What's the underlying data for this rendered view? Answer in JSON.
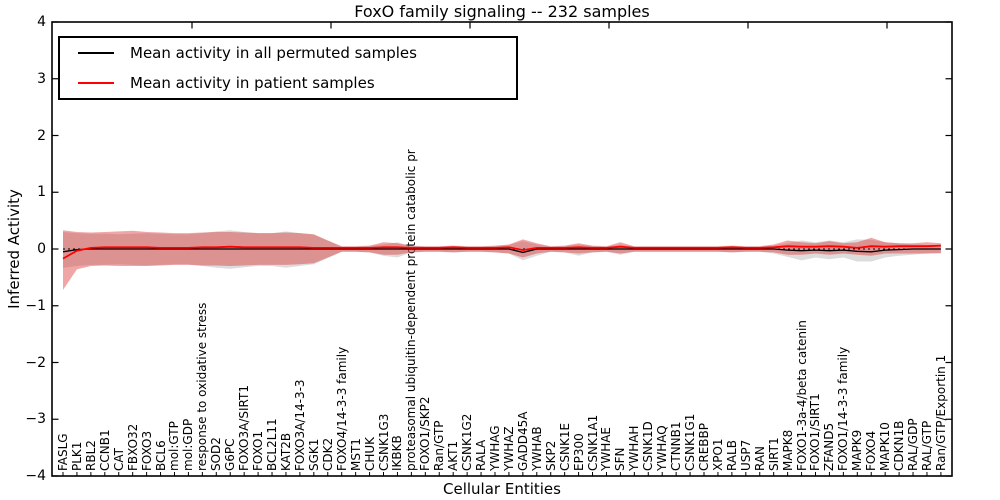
{
  "title": "FoxO family signaling -- 232 samples",
  "axes": {
    "ylabel": "Inferred Activity",
    "xlabel": "Cellular Entities",
    "yticks": [
      4,
      3,
      2,
      1,
      0,
      -1,
      -2,
      -3,
      -4
    ],
    "ylim": [
      -4,
      4
    ]
  },
  "legend": {
    "items": [
      {
        "label": "Mean activity in all permuted samples",
        "color": "#000000"
      },
      {
        "label": "Mean activity in patient samples",
        "color": "#ff0000"
      }
    ]
  },
  "colors": {
    "permuted_line": "#000000",
    "patient_line": "#ff0000",
    "permuted_band": "#9a9a9a",
    "patient_band": "#dd2a2a",
    "zero_line": "#000000",
    "axis": "#000000"
  },
  "chart_data": {
    "type": "line",
    "title": "FoxO family signaling -- 232 samples",
    "xlabel": "Cellular Entities",
    "ylabel": "Inferred Activity",
    "ylim": [
      -4,
      4
    ],
    "grid": false,
    "legend_position": "upper left",
    "zero_line": true,
    "categories": [
      "FASLG",
      "PLK1",
      "RBL2",
      "CCNB1",
      "CAT",
      "FBXO32",
      "FOXO3",
      "BCL6",
      "mol:GTP",
      "mol:GDP",
      "response to oxidative stress",
      "SOD2",
      "G6PC",
      "FOXO3A/SIRT1",
      "FOXO1",
      "BCL2L11",
      "KAT2B",
      "FOXO3A/14-3-3",
      "SGK1",
      "CDK2",
      "FOXO4/14-3-3 family",
      "MST1",
      "CHUK",
      "CSNK1G3",
      "IKBKB",
      "proteasomal ubiquitin-dependent protein catabolic pr",
      "FOXO1/SKP2",
      "Ran/GTP",
      "AKT1",
      "CSNK1G2",
      "RALA",
      "YWHAG",
      "YWHAZ",
      "GADD45A",
      "YWHAB",
      "SKP2",
      "CSNK1E",
      "EP300",
      "CSNK1A1",
      "YWHAE",
      "SFN",
      "YWHAH",
      "CSNK1D",
      "YWHAQ",
      "CTNNB1",
      "CSNK1G1",
      "CREBBP",
      "XPO1",
      "RALB",
      "USP7",
      "RAN",
      "SIRT1",
      "MAPK8",
      "FOXO1-3a-4/beta catenin",
      "FOXO1/SIRT1",
      "ZFAND5",
      "FOXO1/14-3-3 family",
      "MAPK9",
      "FOXO4",
      "MAPK10",
      "CDKN1B",
      "RAL/GDP",
      "RAL/GTP",
      "Ran/GTP/Exportin 1"
    ],
    "series": [
      {
        "name": "Mean activity in all permuted samples",
        "type": "line_with_band",
        "color": "#000000",
        "band_color": "#9a9a9a",
        "band_opacity": 0.35,
        "values": [
          -0.05,
          -0.01,
          0,
          0,
          0,
          0,
          0,
          0,
          0,
          0,
          0,
          0,
          0,
          0,
          0,
          0,
          0,
          0,
          0,
          0,
          0,
          0,
          0,
          0,
          0,
          0,
          0,
          0,
          0,
          0,
          0,
          0,
          0,
          -0.06,
          0,
          0,
          0,
          0,
          0,
          0,
          0,
          0,
          0,
          0,
          0,
          0,
          0,
          0,
          0,
          0,
          0,
          0,
          -0.02,
          -0.03,
          -0.02,
          -0.03,
          -0.02,
          -0.04,
          -0.05,
          -0.02,
          -0.01,
          0,
          0,
          0
        ],
        "band_hi": [
          0.3,
          0.28,
          0.27,
          0.27,
          0.26,
          0.27,
          0.28,
          0.27,
          0.26,
          0.26,
          0.28,
          0.31,
          0.33,
          0.3,
          0.28,
          0.28,
          0.31,
          0.28,
          0.25,
          0.15,
          0.04,
          0.04,
          0.05,
          0.08,
          0.12,
          0.05,
          0.04,
          0.04,
          0.05,
          0.04,
          0.04,
          0.05,
          0.07,
          0.14,
          0.08,
          0.04,
          0.05,
          0.08,
          0.05,
          0.04,
          0.08,
          0.04,
          0.04,
          0.04,
          0.04,
          0.04,
          0.04,
          0.04,
          0.05,
          0.04,
          0.04,
          0.06,
          0.1,
          0.15,
          0.12,
          0.15,
          0.12,
          0.17,
          0.16,
          0.12,
          0.1,
          0.08,
          0.07,
          0.07
        ],
        "band_lo": [
          -0.33,
          -0.3,
          -0.28,
          -0.28,
          -0.27,
          -0.28,
          -0.29,
          -0.28,
          -0.27,
          -0.27,
          -0.3,
          -0.33,
          -0.35,
          -0.32,
          -0.3,
          -0.3,
          -0.33,
          -0.3,
          -0.27,
          -0.16,
          -0.05,
          -0.05,
          -0.06,
          -0.12,
          -0.15,
          -0.06,
          -0.05,
          -0.05,
          -0.06,
          -0.05,
          -0.05,
          -0.06,
          -0.08,
          -0.2,
          -0.12,
          -0.05,
          -0.06,
          -0.12,
          -0.06,
          -0.05,
          -0.1,
          -0.05,
          -0.05,
          -0.05,
          -0.05,
          -0.05,
          -0.05,
          -0.05,
          -0.06,
          -0.05,
          -0.05,
          -0.08,
          -0.14,
          -0.2,
          -0.15,
          -0.18,
          -0.15,
          -0.22,
          -0.22,
          -0.15,
          -0.12,
          -0.1,
          -0.08,
          -0.08
        ]
      },
      {
        "name": "Mean activity in patient samples",
        "type": "line_with_band",
        "color": "#ff0000",
        "band_color": "#dd2a2a",
        "band_opacity": 0.42,
        "values": [
          -0.17,
          -0.03,
          0.02,
          0.03,
          0.03,
          0.03,
          0.03,
          0.02,
          0.02,
          0.02,
          0.03,
          0.03,
          0.04,
          0.03,
          0.03,
          0.03,
          0.03,
          0.03,
          0.02,
          0.02,
          0.02,
          0.02,
          0.02,
          0.03,
          0.03,
          0.02,
          0.02,
          0.02,
          0.03,
          0.02,
          0.02,
          0.02,
          0.03,
          -0.02,
          0.02,
          0.02,
          0.02,
          0.03,
          0.02,
          0.02,
          0.04,
          0.02,
          0.02,
          0.02,
          0.02,
          0.02,
          0.02,
          0.02,
          0.03,
          0.02,
          0.02,
          0.03,
          0.05,
          0.04,
          0.04,
          0.05,
          0.04,
          0.02,
          0.05,
          0.04,
          0.05,
          0.05,
          0.05,
          0.06
        ],
        "band_hi": [
          0.33,
          0.3,
          0.29,
          0.3,
          0.31,
          0.32,
          0.3,
          0.29,
          0.28,
          0.28,
          0.29,
          0.3,
          0.3,
          0.29,
          0.28,
          0.28,
          0.29,
          0.28,
          0.26,
          0.15,
          0.05,
          0.05,
          0.06,
          0.12,
          0.1,
          0.06,
          0.05,
          0.05,
          0.06,
          0.05,
          0.05,
          0.06,
          0.08,
          0.17,
          0.1,
          0.05,
          0.06,
          0.1,
          0.06,
          0.05,
          0.12,
          0.05,
          0.05,
          0.05,
          0.05,
          0.05,
          0.05,
          0.05,
          0.06,
          0.05,
          0.05,
          0.08,
          0.15,
          0.12,
          0.1,
          0.14,
          0.1,
          0.12,
          0.2,
          0.12,
          0.1,
          0.1,
          0.12,
          0.1
        ],
        "band_lo": [
          -0.72,
          -0.36,
          -0.3,
          -0.29,
          -0.3,
          -0.3,
          -0.3,
          -0.29,
          -0.28,
          -0.28,
          -0.29,
          -0.29,
          -0.3,
          -0.29,
          -0.28,
          -0.28,
          -0.28,
          -0.27,
          -0.25,
          -0.15,
          -0.05,
          -0.05,
          -0.06,
          -0.1,
          -0.1,
          -0.06,
          -0.05,
          -0.05,
          -0.06,
          -0.05,
          -0.05,
          -0.06,
          -0.08,
          -0.15,
          -0.08,
          -0.05,
          -0.06,
          -0.08,
          -0.06,
          -0.05,
          -0.08,
          -0.05,
          -0.05,
          -0.05,
          -0.05,
          -0.05,
          -0.05,
          -0.05,
          -0.06,
          -0.05,
          -0.05,
          -0.06,
          -0.1,
          -0.1,
          -0.08,
          -0.1,
          -0.08,
          -0.1,
          -0.12,
          -0.08,
          -0.08,
          -0.08,
          -0.08,
          -0.07
        ]
      }
    ]
  }
}
